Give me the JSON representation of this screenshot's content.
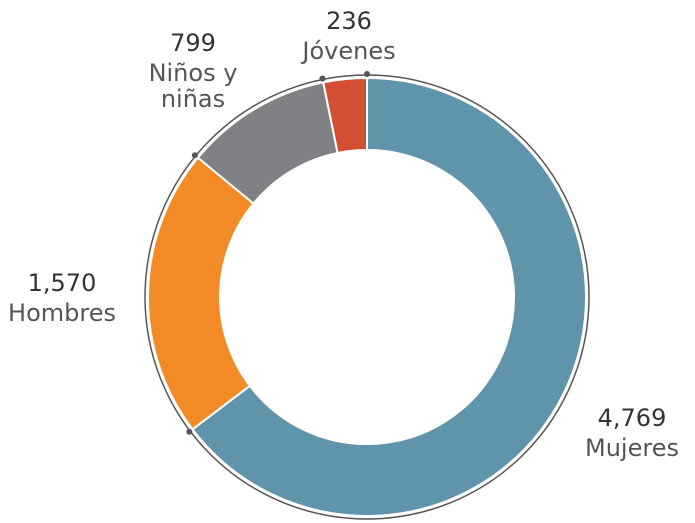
{
  "chart_data": {
    "type": "donut",
    "categories": [
      "Mujeres",
      "Hombres",
      "Niños y niñas",
      "Jóvenes"
    ],
    "values": [
      4769,
      1570,
      799,
      236
    ],
    "value_labels": [
      "4,769",
      "1,570",
      "799",
      "236"
    ],
    "colors": [
      "#6094aa",
      "#f28a26",
      "#808184",
      "#d24f33"
    ]
  }
}
